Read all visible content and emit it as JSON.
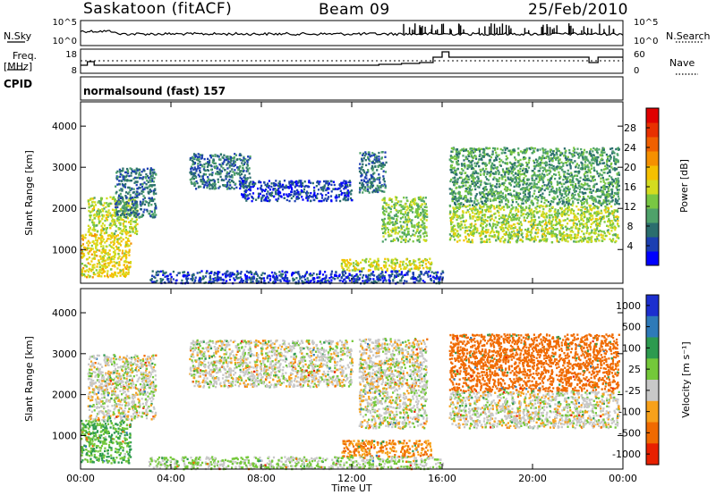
{
  "header": {
    "station": "Saskatoon (fitACF)",
    "beam": "Beam 09",
    "date": "25/Feb/2010"
  },
  "mini_panels": {
    "nsky_label": "N.Sky",
    "nsearch_label": "N.Search",
    "freq_label_1": "Freq.",
    "freq_label_2": "[MHz]",
    "nave_label": "Nave",
    "cpid_label": "CPID",
    "program": "normalsound (fast) 157",
    "noise_ticks_left": [
      "10^5",
      "10^0"
    ],
    "noise_ticks_right": [
      "10^5",
      "10^0"
    ],
    "freq_ticks": [
      "18",
      "8"
    ],
    "nave_ticks": [
      "60",
      "0"
    ]
  },
  "chart_data": [
    {
      "type": "heatmap",
      "name": "power",
      "ylabel": "Slant Range [km]",
      "yticks": [
        "1000",
        "2000",
        "3000",
        "4000"
      ],
      "ylim": [
        180,
        4590
      ],
      "xlim": [
        0,
        24
      ],
      "colorbar_label": "Power [dB]",
      "colorbar_ticks": [
        "4",
        "8",
        "12",
        "16",
        "20",
        "24",
        "28"
      ],
      "colorbar_colors": [
        "#0000ff",
        "#1c3fb2",
        "#2b6e6e",
        "#4fa26a",
        "#79c743",
        "#d4dc1f",
        "#f5c000",
        "#f59000",
        "#f06000",
        "#e83000",
        "#e00000"
      ],
      "scatter_regions": [
        {
          "t0": 0.0,
          "t1": 2.2,
          "r0": 350,
          "r1": 1400,
          "value": 24
        },
        {
          "t0": 0.3,
          "t1": 2.5,
          "r0": 1400,
          "r1": 2300,
          "value": 20
        },
        {
          "t0": 1.5,
          "t1": 3.3,
          "r0": 1800,
          "r1": 3000,
          "value": 10
        },
        {
          "t0": 4.8,
          "t1": 7.5,
          "r0": 2500,
          "r1": 3350,
          "value": 10
        },
        {
          "t0": 7.0,
          "t1": 12.0,
          "r0": 2200,
          "r1": 2700,
          "value": 6
        },
        {
          "t0": 12.3,
          "t1": 13.5,
          "r0": 2400,
          "r1": 3400,
          "value": 10
        },
        {
          "t0": 13.3,
          "t1": 15.3,
          "r0": 1200,
          "r1": 2300,
          "value": 18
        },
        {
          "t0": 11.5,
          "t1": 15.5,
          "r0": 500,
          "r1": 800,
          "value": 22
        },
        {
          "t0": 16.3,
          "t1": 23.8,
          "r0": 1200,
          "r1": 2100,
          "value": 20
        },
        {
          "t0": 16.3,
          "t1": 23.8,
          "r0": 2100,
          "r1": 3500,
          "value": 14
        },
        {
          "t0": 3.0,
          "t1": 16.0,
          "r0": 200,
          "r1": 500,
          "value": 6
        }
      ]
    },
    {
      "type": "heatmap",
      "name": "velocity",
      "ylabel": "Slant Range [km]",
      "yticks": [
        "1000",
        "2000",
        "3000",
        "4000"
      ],
      "ylim": [
        180,
        4590
      ],
      "xlim": [
        0,
        24
      ],
      "xlabel": "Time UT",
      "xticks": [
        "00:00",
        "04:00",
        "08:00",
        "12:00",
        "16:00",
        "20:00",
        "00:00"
      ],
      "colorbar_label": "Velocity [m s⁻¹]",
      "colorbar_ticks": [
        "1000",
        "500",
        "100",
        "25",
        "-25",
        "-100",
        "-500",
        "-1000"
      ],
      "colorbar_colors": [
        "#1c2fcf",
        "#2e7ab8",
        "#2d9a4f",
        "#74c83a",
        "#c8c8c8",
        "#f7a11a",
        "#f06a00",
        "#e82000"
      ],
      "scatter_regions": [
        {
          "t0": 0.0,
          "t1": 2.2,
          "r0": 350,
          "r1": 1400,
          "value": 100
        },
        {
          "t0": 0.3,
          "t1": 3.3,
          "r0": 1400,
          "r1": 3000,
          "value": 0
        },
        {
          "t0": 4.8,
          "t1": 12.0,
          "r0": 2200,
          "r1": 3350,
          "value": 0
        },
        {
          "t0": 12.3,
          "t1": 15.3,
          "r0": 1200,
          "r1": 3400,
          "value": 0
        },
        {
          "t0": 11.5,
          "t1": 15.5,
          "r0": 500,
          "r1": 900,
          "value": -100
        },
        {
          "t0": 16.3,
          "t1": 23.8,
          "r0": 1200,
          "r1": 2100,
          "value": 0
        },
        {
          "t0": 16.3,
          "t1": 23.8,
          "r0": 2100,
          "r1": 3500,
          "value": -200
        },
        {
          "t0": 3.0,
          "t1": 16.0,
          "r0": 200,
          "r1": 500,
          "value": 30
        }
      ]
    }
  ]
}
